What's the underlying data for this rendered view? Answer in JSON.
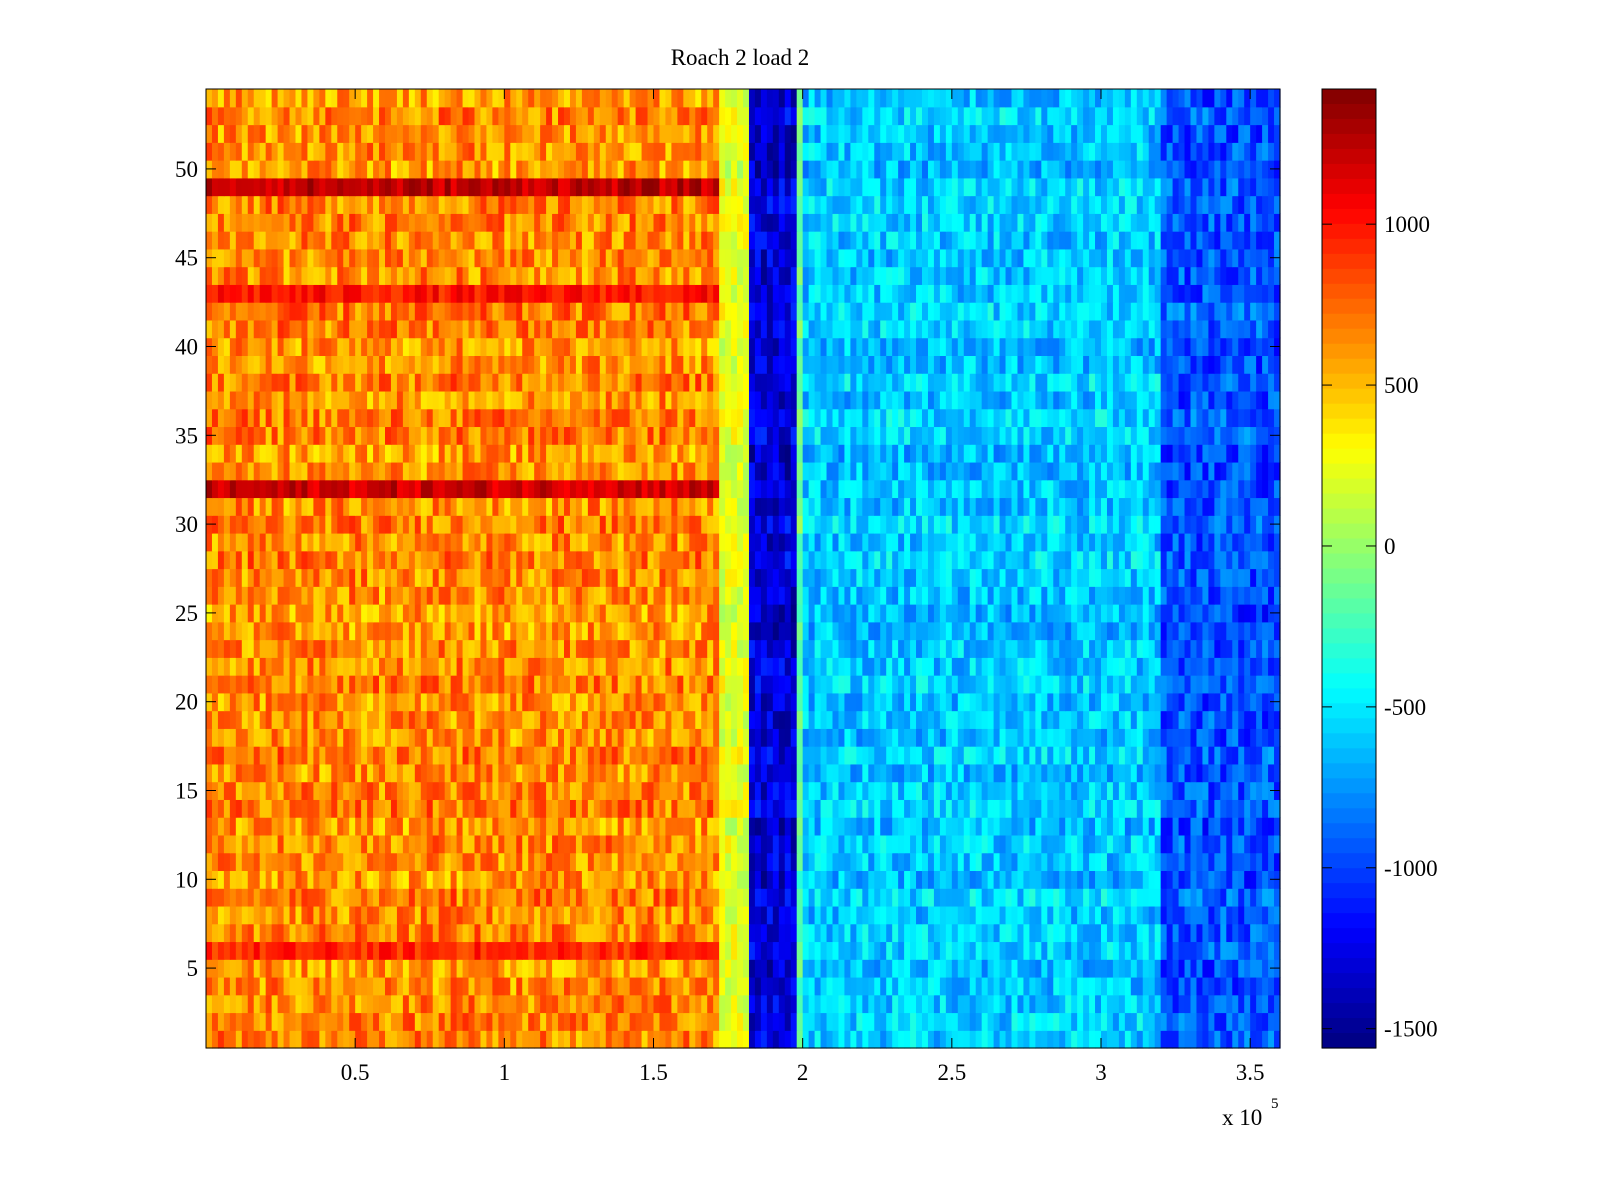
{
  "chart_data": {
    "type": "heatmap",
    "title": "Roach 2 load 2",
    "xlabel": "",
    "ylabel": "",
    "x_multiplier_label": {
      "base": "x 10",
      "exponent": "5"
    },
    "xlim": [
      0,
      3.6
    ],
    "ylim": [
      0.5,
      54.5
    ],
    "x_ticks": [
      {
        "value": 0.5,
        "label": "0.5"
      },
      {
        "value": 1.0,
        "label": "1"
      },
      {
        "value": 1.5,
        "label": "1.5"
      },
      {
        "value": 2.0,
        "label": "2"
      },
      {
        "value": 2.5,
        "label": "2.5"
      },
      {
        "value": 3.0,
        "label": "3"
      },
      {
        "value": 3.5,
        "label": "3.5"
      }
    ],
    "y_ticks": [
      {
        "value": 5,
        "label": "5"
      },
      {
        "value": 10,
        "label": "10"
      },
      {
        "value": 15,
        "label": "15"
      },
      {
        "value": 20,
        "label": "20"
      },
      {
        "value": 25,
        "label": "25"
      },
      {
        "value": 30,
        "label": "30"
      },
      {
        "value": 35,
        "label": "35"
      },
      {
        "value": 40,
        "label": "40"
      },
      {
        "value": 45,
        "label": "45"
      },
      {
        "value": 50,
        "label": "50"
      }
    ],
    "rows": 54,
    "clim": [
      -1560,
      1420
    ],
    "colormap": "jet",
    "colorbar_ticks": [
      {
        "value": 1000,
        "label": "1000"
      },
      {
        "value": 500,
        "label": "500"
      },
      {
        "value": 0,
        "label": "0"
      },
      {
        "value": -500,
        "label": "-500"
      },
      {
        "value": -1000,
        "label": "-1000"
      },
      {
        "value": -1500,
        "label": "-1500"
      }
    ],
    "column_bands": [
      {
        "x_start": 0.0,
        "x_end": 1.72,
        "mean": 640,
        "noise": 260
      },
      {
        "x_start": 1.72,
        "x_end": 1.82,
        "mean": 220,
        "noise": 150
      },
      {
        "x_start": 1.82,
        "x_end": 1.98,
        "mean": -1300,
        "noise": 220
      },
      {
        "x_start": 1.98,
        "x_end": 2.0,
        "mean": -150,
        "noise": 150
      },
      {
        "x_start": 2.0,
        "x_end": 3.2,
        "mean": -600,
        "noise": 220
      },
      {
        "x_start": 3.2,
        "x_end": 3.6,
        "mean": -950,
        "noise": 230
      }
    ],
    "highlighted_rows": [
      {
        "row": 49,
        "x_start": 0.0,
        "x_end": 1.72,
        "mean": 1200
      },
      {
        "row": 43,
        "x_start": 0.0,
        "x_end": 1.72,
        "mean": 1000
      },
      {
        "row": 32,
        "x_start": 0.0,
        "x_end": 1.72,
        "mean": 1220
      },
      {
        "row": 6,
        "x_start": 0.0,
        "x_end": 1.72,
        "mean": 900
      }
    ]
  }
}
